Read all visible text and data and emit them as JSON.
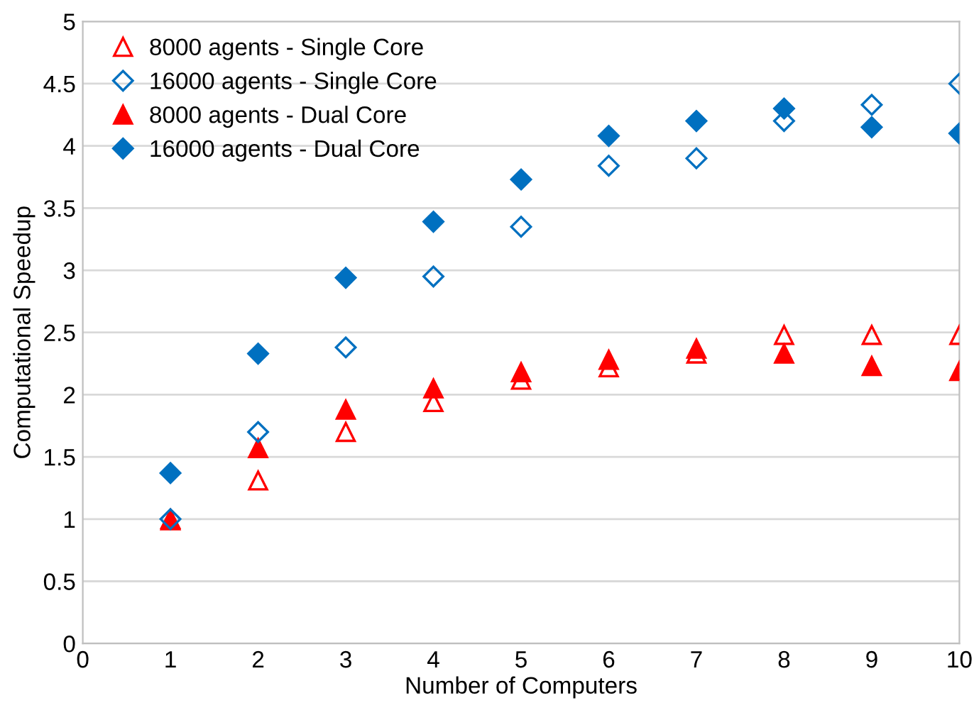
{
  "chart_data": {
    "type": "scatter",
    "xlabel": "Number of Computers",
    "ylabel": "Computational Speedup",
    "x": [
      1,
      2,
      3,
      4,
      5,
      6,
      7,
      8,
      9,
      10
    ],
    "series": [
      {
        "name": "8000 agents - Single Core",
        "color": "#ff0000",
        "marker": "triangle",
        "values": [
          1.0,
          1.31,
          1.7,
          1.94,
          2.12,
          2.22,
          2.33,
          2.48,
          2.48,
          2.48
        ]
      },
      {
        "name": "16000 agents - Single Core",
        "color": "#0070c0",
        "marker": "diamond",
        "values": [
          1.0,
          1.7,
          2.38,
          2.95,
          3.35,
          3.84,
          3.9,
          4.2,
          4.33,
          4.5
        ]
      },
      {
        "name": "8000 agents - Dual Core",
        "color": "#ff0000",
        "marker": "triangle",
        "values": [
          0.99,
          1.57,
          1.88,
          2.05,
          2.18,
          2.28,
          2.37,
          2.33,
          2.23,
          2.19
        ]
      },
      {
        "name": "16000 agents - Dual Core",
        "color": "#0070c0",
        "marker": "diamond",
        "values": [
          1.37,
          2.33,
          2.94,
          3.39,
          3.73,
          4.08,
          4.2,
          4.3,
          4.15,
          4.1
        ]
      }
    ],
    "xlim": [
      0,
      10
    ],
    "xticks": [
      0,
      1,
      2,
      3,
      4,
      5,
      6,
      7,
      8,
      9,
      10
    ],
    "ylim": [
      0,
      5
    ],
    "yticks": [
      0,
      0.5,
      1,
      1.5,
      2,
      2.5,
      3,
      3.5,
      4,
      4.5,
      5
    ],
    "grid": "y",
    "legend": "top left"
  }
}
